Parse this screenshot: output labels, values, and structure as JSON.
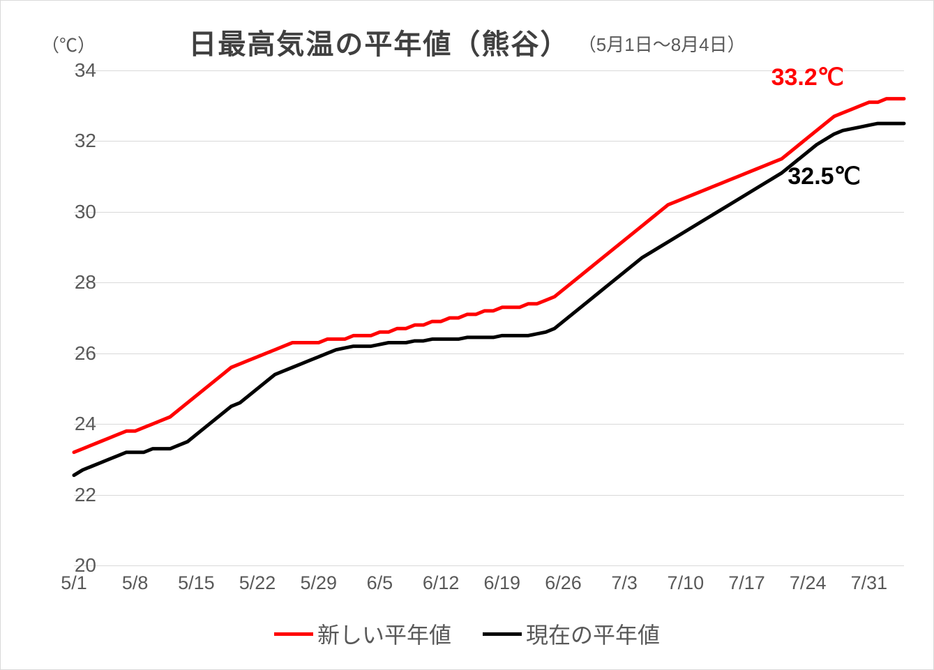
{
  "chart": {
    "type": "line",
    "title_main": "日最高気温の平年値（熊谷）",
    "title_sub": "（5月1日～8月4日）",
    "unit_label": "（℃）",
    "background_color": "#ffffff",
    "border_color": "#d9d9d9",
    "grid_color": "#d9d9d9",
    "text_color": "#595959",
    "title_color": "#404040",
    "title_fontsize": 40,
    "subtitle_fontsize": 26,
    "axis_fontsize": 28,
    "line_width": 5,
    "ylim": [
      20,
      34
    ],
    "ytick_step": 2,
    "y_ticks": [
      "20",
      "22",
      "24",
      "26",
      "28",
      "30",
      "32",
      "34"
    ],
    "x_labels": [
      "5/1",
      "5/8",
      "5/15",
      "5/22",
      "5/29",
      "6/5",
      "6/12",
      "6/19",
      "6/26",
      "7/3",
      "7/10",
      "7/17",
      "7/24",
      "7/31"
    ],
    "x_count": 96,
    "x_tick_every": 7,
    "series": [
      {
        "name": "新しい平年値",
        "color": "#ff0000",
        "end_label": "33.2℃",
        "end_label_color": "#ff0000",
        "end_label_pos": {
          "x_pct": 84,
          "y_val": 33.8
        },
        "values": [
          23.2,
          23.3,
          23.4,
          23.5,
          23.6,
          23.7,
          23.8,
          23.8,
          23.9,
          24.0,
          24.1,
          24.2,
          24.4,
          24.6,
          24.8,
          25.0,
          25.2,
          25.4,
          25.6,
          25.7,
          25.8,
          25.9,
          26.0,
          26.1,
          26.2,
          26.3,
          26.3,
          26.3,
          26.3,
          26.4,
          26.4,
          26.4,
          26.5,
          26.5,
          26.5,
          26.6,
          26.6,
          26.7,
          26.7,
          26.8,
          26.8,
          26.9,
          26.9,
          27.0,
          27.0,
          27.1,
          27.1,
          27.2,
          27.2,
          27.3,
          27.3,
          27.3,
          27.4,
          27.4,
          27.5,
          27.6,
          27.8,
          28.0,
          28.2,
          28.4,
          28.6,
          28.8,
          29.0,
          29.2,
          29.4,
          29.6,
          29.8,
          30.0,
          30.2,
          30.3,
          30.4,
          30.5,
          30.6,
          30.7,
          30.8,
          30.9,
          31.0,
          31.1,
          31.2,
          31.3,
          31.4,
          31.5,
          31.7,
          31.9,
          32.1,
          32.3,
          32.5,
          32.7,
          32.8,
          32.9,
          33.0,
          33.1,
          33.1,
          33.2,
          33.2,
          33.2
        ]
      },
      {
        "name": "現在の平年値",
        "color": "#000000",
        "end_label": "32.5℃",
        "end_label_color": "#000000",
        "end_label_pos": {
          "x_pct": 86,
          "y_val": 31.0
        },
        "values": [
          22.55,
          22.7,
          22.8,
          22.9,
          23.0,
          23.1,
          23.2,
          23.2,
          23.2,
          23.3,
          23.3,
          23.3,
          23.4,
          23.5,
          23.7,
          23.9,
          24.1,
          24.3,
          24.5,
          24.6,
          24.8,
          25.0,
          25.2,
          25.4,
          25.5,
          25.6,
          25.7,
          25.8,
          25.9,
          26.0,
          26.1,
          26.15,
          26.2,
          26.2,
          26.2,
          26.25,
          26.3,
          26.3,
          26.3,
          26.35,
          26.35,
          26.4,
          26.4,
          26.4,
          26.4,
          26.45,
          26.45,
          26.45,
          26.45,
          26.5,
          26.5,
          26.5,
          26.5,
          26.55,
          26.6,
          26.7,
          26.9,
          27.1,
          27.3,
          27.5,
          27.7,
          27.9,
          28.1,
          28.3,
          28.5,
          28.7,
          28.85,
          29.0,
          29.15,
          29.3,
          29.45,
          29.6,
          29.75,
          29.9,
          30.05,
          30.2,
          30.35,
          30.5,
          30.65,
          30.8,
          30.95,
          31.1,
          31.3,
          31.5,
          31.7,
          31.9,
          32.05,
          32.2,
          32.3,
          32.35,
          32.4,
          32.45,
          32.5,
          32.5,
          32.5,
          32.5
        ]
      }
    ],
    "legend": {
      "items": [
        {
          "label": "新しい平年値",
          "color": "#ff0000"
        },
        {
          "label": "現在の平年値",
          "color": "#000000"
        }
      ]
    }
  }
}
